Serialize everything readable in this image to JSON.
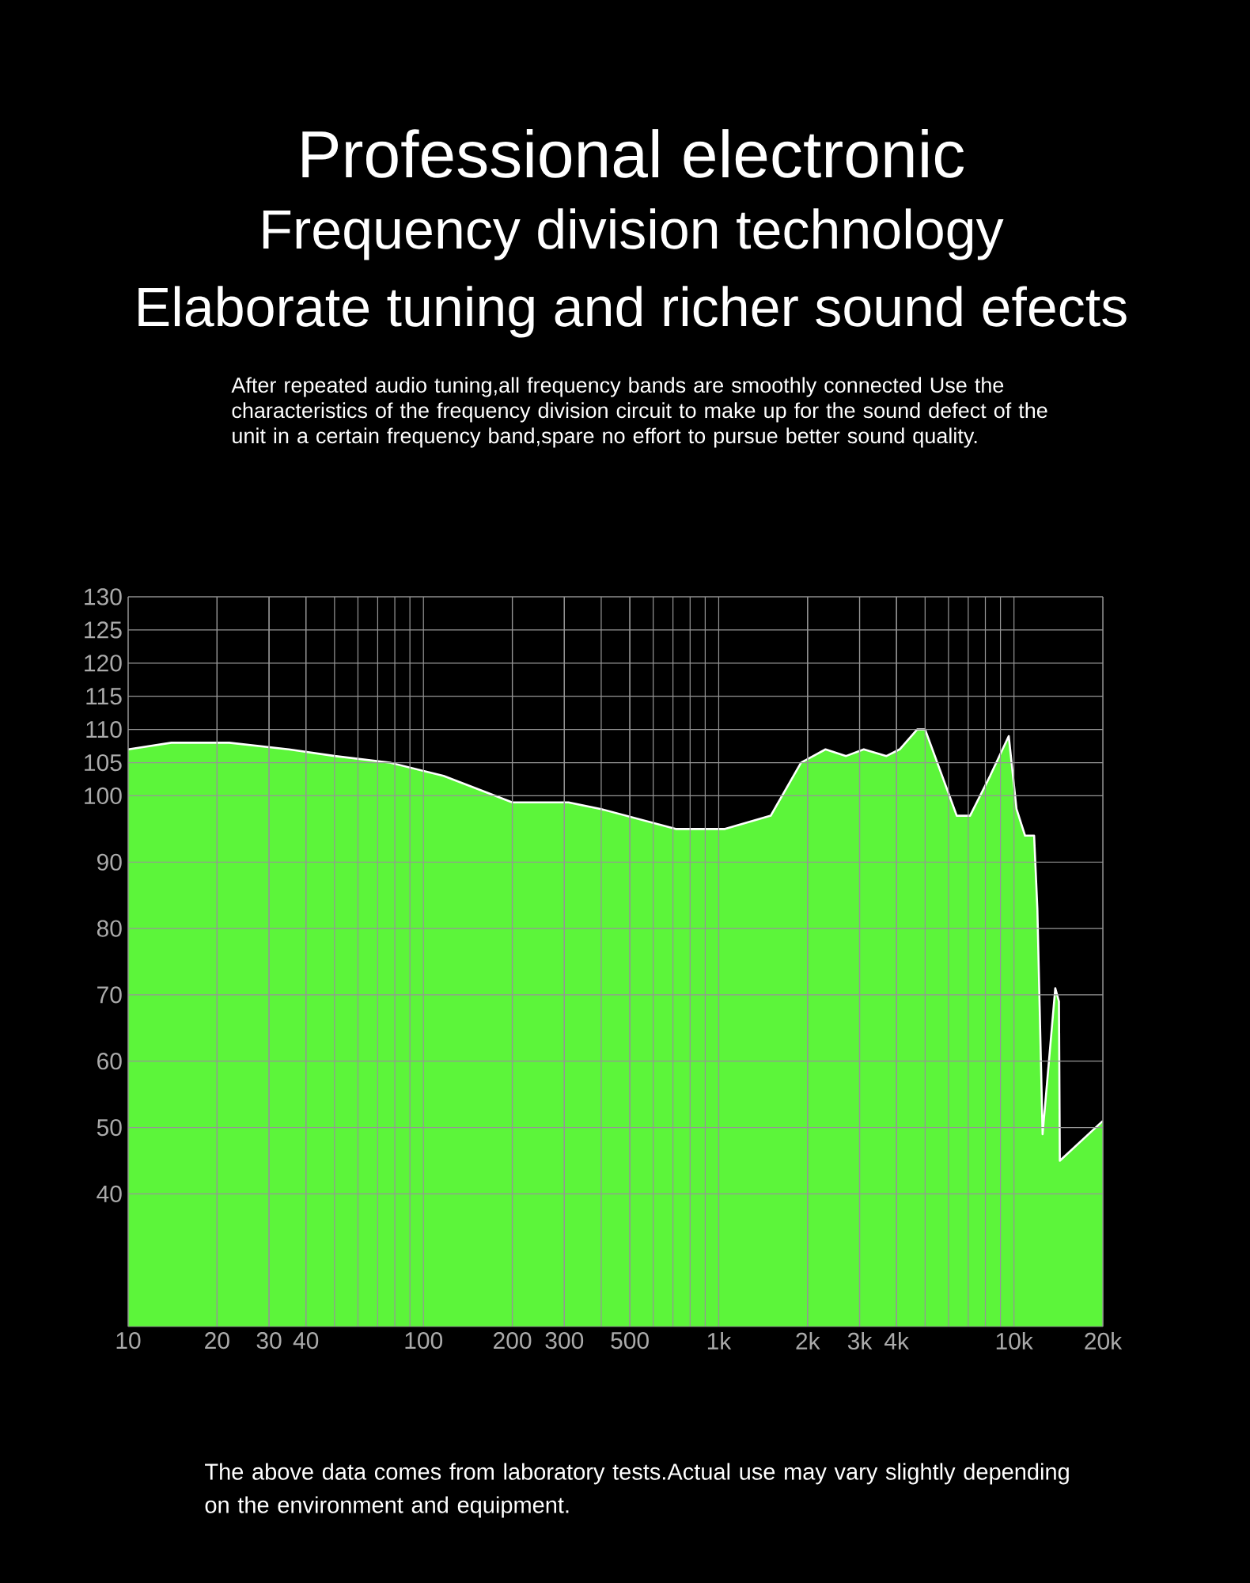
{
  "chart_data": {
    "type": "area",
    "title": "Professional electronic",
    "subtitle": "Frequency division technology",
    "annotations": [
      "Elaborate tuning and richer sound efects",
      "After repeated audio tuning,all frequency bands are smoothly connected Use the characteristics of the frequency division circuit to make up for the sound defect of the unit in a certain frequency band,spare no effort to pursue better sound quality.",
      "The above data comes from laboratory tests.Actual use may vary slightly depending on the environment and equipment."
    ],
    "x": [
      10,
      14,
      22,
      35,
      50,
      77,
      117,
      153,
      200,
      310,
      400,
      715,
      1050,
      1500,
      1900,
      2300,
      2700,
      3100,
      3700,
      4100,
      4700,
      5000,
      6400,
      7100,
      8300,
      9600,
      10200,
      10900,
      11700,
      12000,
      12500,
      13800,
      14200,
      14300,
      20000
    ],
    "values": [
      107,
      108,
      108,
      107,
      106,
      105,
      103,
      101,
      99,
      99,
      98,
      95,
      95,
      97,
      105,
      107,
      106,
      107,
      106,
      107,
      110,
      110,
      97,
      97,
      103,
      109,
      98,
      94,
      94,
      83,
      49,
      71,
      69,
      45,
      51
    ],
    "color": "#5cf53a",
    "log": "x",
    "xlim": [
      10,
      20000
    ],
    "ylim": [
      20,
      130
    ],
    "xticks": [
      10,
      20,
      30,
      40,
      100,
      200,
      300,
      500,
      {
        "value": 1000,
        "label": "1k"
      },
      {
        "value": 2000,
        "label": "2k"
      },
      {
        "value": 3000,
        "label": "3k"
      },
      {
        "value": 4000,
        "label": "4k"
      },
      {
        "value": 10000,
        "label": "10k"
      },
      {
        "value": 20000,
        "label": "20k"
      }
    ],
    "yticks": [
      130,
      125,
      120,
      115,
      110,
      105,
      100,
      90,
      80,
      70,
      60,
      50,
      40
    ],
    "grid": true
  }
}
